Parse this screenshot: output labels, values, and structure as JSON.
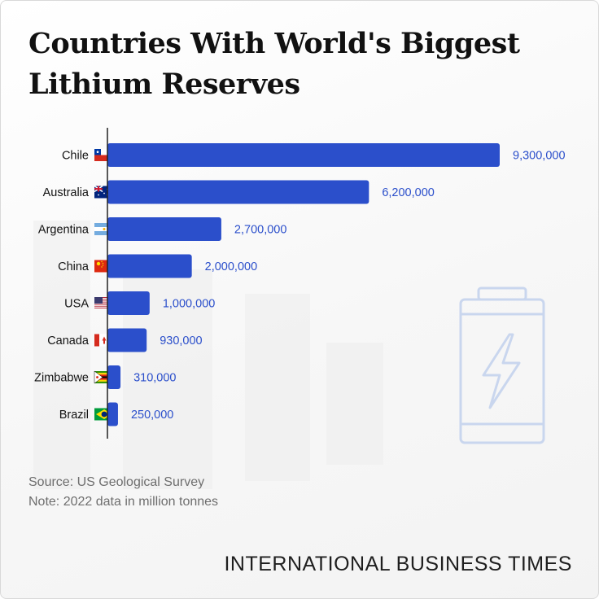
{
  "title": "Countries With World's Biggest Lithium Reserves",
  "source": "Source: US Geological Survey",
  "note": "Note: 2022 data in million tonnes",
  "brand": "INTERNATIONAL BUSINESS TIMES",
  "colors": {
    "bar": "#2b4fcb",
    "value_label": "#2b4fcb",
    "axis": "#222222",
    "icon": "#c9d6ee"
  },
  "icons": {
    "decor": "battery-bolt-icon"
  },
  "chart_data": {
    "type": "bar",
    "orientation": "horizontal",
    "categories": [
      "Chile",
      "Australia",
      "Argentina",
      "China",
      "USA",
      "Canada",
      "Zimbabwe",
      "Brazil"
    ],
    "values": [
      9300000,
      6200000,
      2700000,
      2000000,
      1000000,
      930000,
      310000,
      250000
    ],
    "value_labels": [
      "9,300,000",
      "6,200,000",
      "2,700,000",
      "2,000,000",
      "1,000,000",
      "930,000",
      "310,000",
      "250,000"
    ],
    "flags": [
      "chile-flag-icon",
      "australia-flag-icon",
      "argentina-flag-icon",
      "china-flag-icon",
      "usa-flag-icon",
      "canada-flag-icon",
      "zimbabwe-flag-icon",
      "brazil-flag-icon"
    ],
    "xlim": [
      0,
      9300000
    ],
    "grid": false,
    "legend": false
  }
}
